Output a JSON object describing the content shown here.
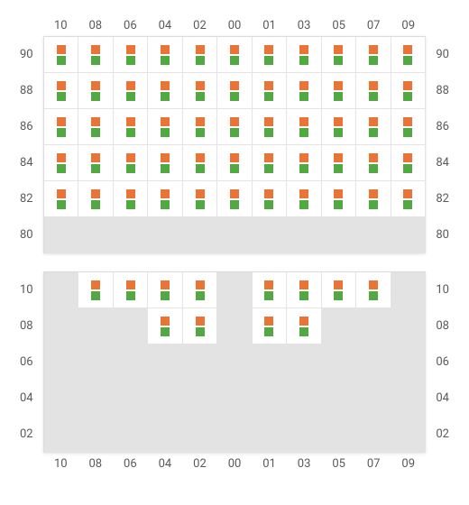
{
  "colors": {
    "marker_top": "#e87435",
    "marker_bottom": "#52a842",
    "cell_on": "#ffffff",
    "cell_off": "#e3e3e3",
    "grid_border": "#e4e4e4",
    "outer_border": "#dcdcdc",
    "label": "#5a5a5a",
    "label_fontsize": 13
  },
  "columns": [
    "10",
    "08",
    "06",
    "04",
    "02",
    "00",
    "01",
    "03",
    "05",
    "07",
    "09"
  ],
  "panels": [
    {
      "id": "top",
      "show_top_header": true,
      "show_bottom_header": false,
      "rows": [
        "90",
        "88",
        "86",
        "84",
        "82",
        "80"
      ],
      "cells": [
        [
          1,
          1,
          1,
          1,
          1,
          1,
          1,
          1,
          1,
          1,
          1
        ],
        [
          1,
          1,
          1,
          1,
          1,
          1,
          1,
          1,
          1,
          1,
          1
        ],
        [
          1,
          1,
          1,
          1,
          1,
          1,
          1,
          1,
          1,
          1,
          1
        ],
        [
          1,
          1,
          1,
          1,
          1,
          1,
          1,
          1,
          1,
          1,
          1
        ],
        [
          1,
          1,
          1,
          1,
          1,
          1,
          1,
          1,
          1,
          1,
          1
        ],
        [
          0,
          0,
          0,
          0,
          0,
          0,
          0,
          0,
          0,
          0,
          0
        ]
      ]
    },
    {
      "id": "bottom",
      "show_top_header": false,
      "show_bottom_header": true,
      "rows": [
        "10",
        "08",
        "06",
        "04",
        "02"
      ],
      "cells": [
        [
          0,
          1,
          1,
          1,
          1,
          0,
          1,
          1,
          1,
          1,
          0
        ],
        [
          0,
          0,
          0,
          1,
          1,
          0,
          1,
          1,
          0,
          0,
          0
        ],
        [
          0,
          0,
          0,
          0,
          0,
          0,
          0,
          0,
          0,
          0,
          0
        ],
        [
          0,
          0,
          0,
          0,
          0,
          0,
          0,
          0,
          0,
          0,
          0
        ],
        [
          0,
          0,
          0,
          0,
          0,
          0,
          0,
          0,
          0,
          0,
          0
        ]
      ]
    }
  ]
}
